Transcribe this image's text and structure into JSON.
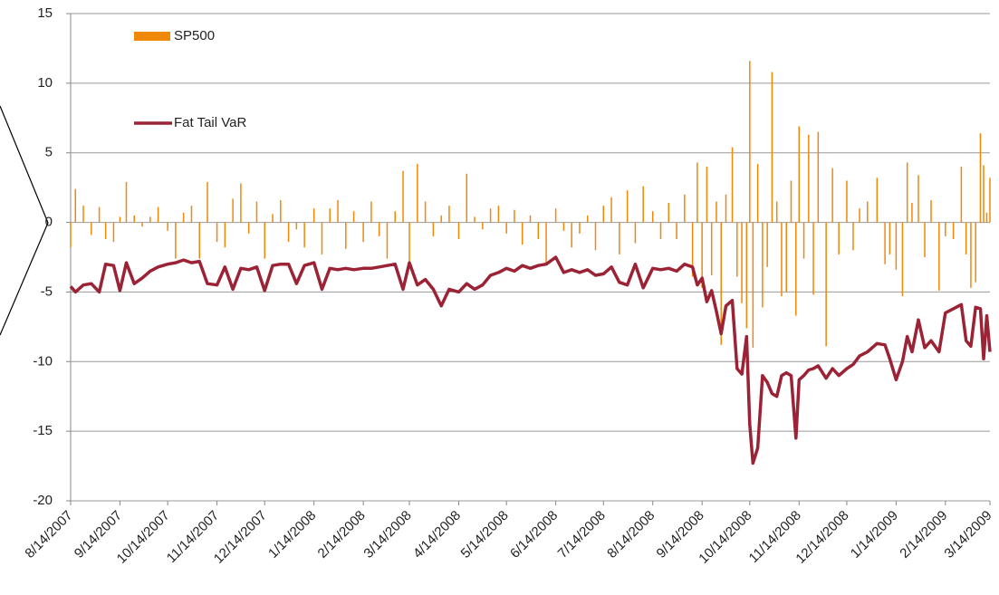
{
  "chart_data": {
    "type": "bar-line",
    "x": [
      "8/14/2007",
      "8/17/2007",
      "8/22/2007",
      "8/27/2007",
      "9/1/2007",
      "9/5/2007",
      "9/10/2007",
      "9/14/2007",
      "9/18/2007",
      "9/23/2007",
      "9/28/2007",
      "10/3/2007",
      "10/8/2007",
      "10/14/2007",
      "10/19/2007",
      "10/24/2007",
      "10/29/2007",
      "11/3/2007",
      "11/8/2007",
      "11/14/2007",
      "11/19/2007",
      "11/24/2007",
      "11/29/2007",
      "12/4/2007",
      "12/9/2007",
      "12/14/2007",
      "12/19/2007",
      "12/24/2007",
      "12/29/2007",
      "1/3/2008",
      "1/8/2008",
      "1/14/2008",
      "1/19/2008",
      "1/24/2008",
      "1/29/2008",
      "2/3/2008",
      "2/8/2008",
      "2/14/2008",
      "2/19/2008",
      "2/24/2008",
      "2/29/2008",
      "3/5/2008",
      "3/10/2008",
      "3/14/2008",
      "3/19/2008",
      "3/24/2008",
      "3/29/2008",
      "4/3/2008",
      "4/8/2008",
      "4/14/2008",
      "4/19/2008",
      "4/24/2008",
      "4/29/2008",
      "5/4/2008",
      "5/9/2008",
      "5/14/2008",
      "5/19/2008",
      "5/24/2008",
      "5/29/2008",
      "6/3/2008",
      "6/8/2008",
      "6/14/2008",
      "6/19/2008",
      "6/24/2008",
      "6/29/2008",
      "7/4/2008",
      "7/9/2008",
      "7/14/2008",
      "7/19/2008",
      "7/24/2008",
      "7/29/2008",
      "8/3/2008",
      "8/8/2008",
      "8/14/2008",
      "8/19/2008",
      "8/24/2008",
      "8/29/2008",
      "9/3/2008",
      "9/8/2008",
      "9/11/2008",
      "9/14/2008",
      "9/17/2008",
      "9/20/2008",
      "9/23/2008",
      "9/26/2008",
      "9/29/2008",
      "10/3/2008",
      "10/6/2008",
      "10/9/2008",
      "10/12/2008",
      "10/14/2008",
      "10/16/2008",
      "10/19/2008",
      "10/22/2008",
      "10/25/2008",
      "10/28/2008",
      "10/31/2008",
      "11/3/2008",
      "11/6/2008",
      "11/9/2008",
      "11/12/2008",
      "11/14/2008",
      "11/17/2008",
      "11/20/2008",
      "11/23/2008",
      "11/26/2008",
      "12/1/2008",
      "12/5/2008",
      "12/9/2008",
      "12/14/2008",
      "12/18/2008",
      "12/22/2008",
      "12/27/2008",
      "1/2/2009",
      "1/7/2009",
      "1/10/2009",
      "1/14/2009",
      "1/18/2009",
      "1/21/2009",
      "1/24/2009",
      "1/28/2009",
      "2/1/2009",
      "2/5/2009",
      "2/10/2009",
      "2/14/2009",
      "2/19/2009",
      "2/24/2009",
      "2/27/2009",
      "3/2/2009",
      "3/5/2009",
      "3/8/2009",
      "3/10/2009",
      "3/12/2009",
      "3/14/2009"
    ],
    "series": [
      {
        "name": "SP500",
        "type": "bar",
        "color": "#f0880a",
        "values": [
          -1.8,
          2.4,
          1.2,
          -0.9,
          1.1,
          -1.2,
          -1.4,
          0.4,
          2.9,
          0.5,
          -0.3,
          0.4,
          1.1,
          -0.6,
          -2.6,
          0.7,
          1.2,
          -2.6,
          2.9,
          -1.4,
          -1.8,
          1.7,
          2.8,
          -0.8,
          1.5,
          -2.6,
          0.6,
          1.6,
          -1.4,
          -0.5,
          -1.8,
          1.0,
          -2.3,
          1.0,
          1.6,
          -1.9,
          0.8,
          -1.4,
          1.5,
          -1.0,
          -2.6,
          0.8,
          3.7,
          -2.8,
          4.2,
          1.5,
          -1.0,
          0.5,
          1.2,
          -1.2,
          3.5,
          0.4,
          -0.5,
          1.0,
          1.2,
          -0.8,
          0.9,
          -1.6,
          0.5,
          -1.2,
          -2.9,
          1.0,
          -0.6,
          -1.8,
          -0.8,
          0.5,
          -2.0,
          1.2,
          1.8,
          -2.3,
          2.3,
          -1.5,
          2.6,
          0.8,
          -1.2,
          1.4,
          -1.2,
          2.0,
          -3.9,
          4.3,
          -4.7,
          4.0,
          -3.8,
          1.5,
          -8.8,
          2.0,
          5.4,
          -3.9,
          -5.8,
          -7.6,
          11.6,
          -9.0,
          4.2,
          -6.1,
          -3.2,
          10.8,
          1.5,
          -5.3,
          -5.0,
          3.0,
          -6.7,
          6.9,
          -2.6,
          6.3,
          -5.2,
          6.5,
          -8.9,
          3.9,
          -2.3,
          3.0,
          -2.0,
          1.0,
          1.5,
          3.2,
          -3.0,
          -2.3,
          -3.4,
          -5.3,
          4.3,
          1.4,
          3.4,
          -2.5,
          1.6,
          -4.9,
          -1.0,
          -1.2,
          4.0,
          -2.3,
          -4.7,
          -4.3,
          6.4,
          4.1,
          0.7,
          3.2
        ]
      },
      {
        "name": "Fat Tail VaR",
        "type": "line",
        "color": "#9b2335",
        "values": [
          -4.6,
          -5.0,
          -4.5,
          -4.4,
          -5.0,
          -3.0,
          -3.1,
          -4.9,
          -2.9,
          -4.4,
          -4.0,
          -3.5,
          -3.2,
          -3.0,
          -2.9,
          -2.7,
          -2.9,
          -2.8,
          -4.4,
          -4.5,
          -3.2,
          -4.8,
          -3.3,
          -3.4,
          -3.2,
          -4.9,
          -3.1,
          -3.0,
          -3.0,
          -4.4,
          -3.1,
          -2.9,
          -4.8,
          -3.3,
          -3.4,
          -3.3,
          -3.4,
          -3.3,
          -3.3,
          -3.2,
          -3.1,
          -3.0,
          -4.8,
          -2.9,
          -4.5,
          -4.1,
          -4.8,
          -6.0,
          -4.8,
          -5.0,
          -4.4,
          -4.8,
          -4.5,
          -3.8,
          -3.6,
          -3.3,
          -3.5,
          -3.1,
          -3.3,
          -3.1,
          -3.0,
          -2.5,
          -3.6,
          -3.4,
          -3.6,
          -3.4,
          -3.8,
          -3.7,
          -3.2,
          -4.3,
          -4.5,
          -3.0,
          -4.7,
          -3.3,
          -3.4,
          -3.3,
          -3.5,
          -3.0,
          -3.2,
          -4.5,
          -4.0,
          -5.7,
          -4.9,
          -6.4,
          -8.0,
          -6.0,
          -5.6,
          -10.5,
          -10.9,
          -8.2,
          -14.5,
          -17.3,
          -16.2,
          -11.0,
          -11.5,
          -12.3,
          -12.5,
          -11.0,
          -10.8,
          -11.0,
          -15.5,
          -11.3,
          -11.0,
          -10.6,
          -10.5,
          -10.3,
          -11.2,
          -10.5,
          -11.0,
          -10.5,
          -10.2,
          -9.6,
          -9.3,
          -8.7,
          -8.8,
          -9.8,
          -11.3,
          -10.0,
          -8.2,
          -9.3,
          -7.0,
          -9.0,
          -8.5,
          -9.3,
          -6.5,
          -6.2,
          -5.9,
          -8.5,
          -8.9,
          -6.1,
          -6.2,
          -9.8,
          -6.7,
          -9.3
        ]
      }
    ],
    "xlim": [
      "8/14/2007",
      "3/14/2009"
    ],
    "xticks": [
      "8/14/2007",
      "9/14/2007",
      "10/14/2007",
      "11/14/2007",
      "12/14/2007",
      "1/14/2008",
      "2/14/2008",
      "3/14/2008",
      "4/14/2008",
      "5/14/2008",
      "6/14/2008",
      "7/14/2008",
      "8/14/2008",
      "9/14/2008",
      "10/14/2008",
      "11/14/2008",
      "12/14/2008",
      "1/14/2009",
      "2/14/2009",
      "3/14/2009"
    ],
    "ylim": [
      -20,
      15
    ],
    "yticks": [
      -20,
      -15,
      -10,
      -5,
      0,
      5,
      10,
      15
    ],
    "grid": true
  }
}
